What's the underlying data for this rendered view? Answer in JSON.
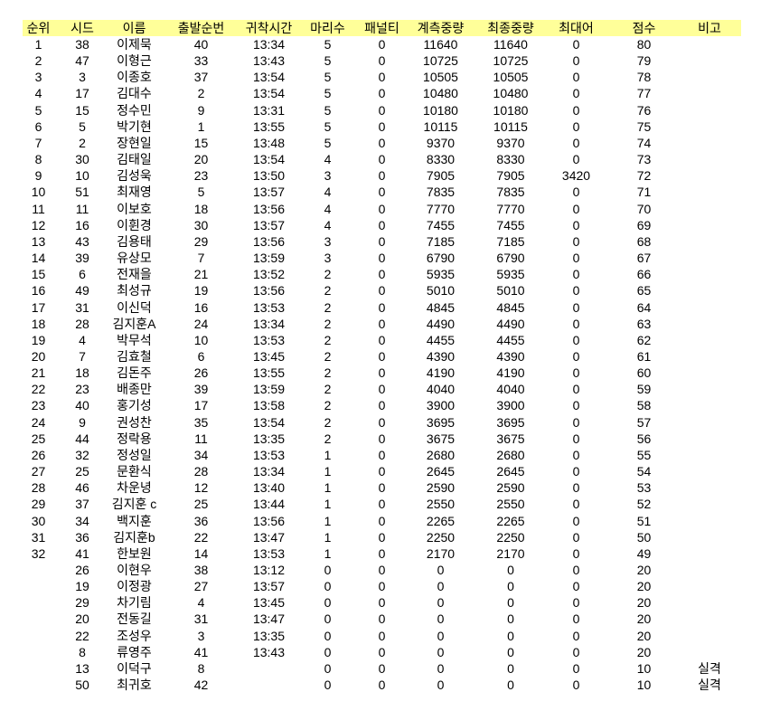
{
  "headers": [
    "순위",
    "시드",
    "이름",
    "출발순번",
    "귀착시간",
    "마리수",
    "패널티",
    "계측중량",
    "최종중량",
    "최대어",
    "점수",
    "비고"
  ],
  "header_bg": "#ffff99",
  "rows": [
    [
      "1",
      "38",
      "이제묵",
      "40",
      "13:34",
      "5",
      "0",
      "11640",
      "11640",
      "0",
      "80",
      ""
    ],
    [
      "2",
      "47",
      "이형근",
      "33",
      "13:43",
      "5",
      "0",
      "10725",
      "10725",
      "0",
      "79",
      ""
    ],
    [
      "3",
      "3",
      "이종호",
      "37",
      "13:54",
      "5",
      "0",
      "10505",
      "10505",
      "0",
      "78",
      ""
    ],
    [
      "4",
      "17",
      "김대수",
      "2",
      "13:54",
      "5",
      "0",
      "10480",
      "10480",
      "0",
      "77",
      ""
    ],
    [
      "5",
      "15",
      "정수민",
      "9",
      "13:31",
      "5",
      "0",
      "10180",
      "10180",
      "0",
      "76",
      ""
    ],
    [
      "6",
      "5",
      "박기현",
      "1",
      "13:55",
      "5",
      "0",
      "10115",
      "10115",
      "0",
      "75",
      ""
    ],
    [
      "7",
      "2",
      "장현일",
      "15",
      "13:48",
      "5",
      "0",
      "9370",
      "9370",
      "0",
      "74",
      ""
    ],
    [
      "8",
      "30",
      "김태일",
      "20",
      "13:54",
      "4",
      "0",
      "8330",
      "8330",
      "0",
      "73",
      ""
    ],
    [
      "9",
      "10",
      "김성욱",
      "23",
      "13:50",
      "3",
      "0",
      "7905",
      "7905",
      "3420",
      "72",
      ""
    ],
    [
      "10",
      "51",
      "최재영",
      "5",
      "13:57",
      "4",
      "0",
      "7835",
      "7835",
      "0",
      "71",
      ""
    ],
    [
      "11",
      "11",
      "이보호",
      "18",
      "13:56",
      "4",
      "0",
      "7770",
      "7770",
      "0",
      "70",
      ""
    ],
    [
      "12",
      "16",
      "이휜경",
      "30",
      "13:57",
      "4",
      "0",
      "7455",
      "7455",
      "0",
      "69",
      ""
    ],
    [
      "13",
      "43",
      "김용태",
      "29",
      "13:56",
      "3",
      "0",
      "7185",
      "7185",
      "0",
      "68",
      ""
    ],
    [
      "14",
      "39",
      "유상모",
      "7",
      "13:59",
      "3",
      "0",
      "6790",
      "6790",
      "0",
      "67",
      ""
    ],
    [
      "15",
      "6",
      "전재을",
      "21",
      "13:52",
      "2",
      "0",
      "5935",
      "5935",
      "0",
      "66",
      ""
    ],
    [
      "16",
      "49",
      "최성규",
      "19",
      "13:56",
      "2",
      "0",
      "5010",
      "5010",
      "0",
      "65",
      ""
    ],
    [
      "17",
      "31",
      "이신덕",
      "16",
      "13:53",
      "2",
      "0",
      "4845",
      "4845",
      "0",
      "64",
      ""
    ],
    [
      "18",
      "28",
      "김지훈A",
      "24",
      "13:34",
      "2",
      "0",
      "4490",
      "4490",
      "0",
      "63",
      ""
    ],
    [
      "19",
      "4",
      "박무석",
      "10",
      "13:53",
      "2",
      "0",
      "4455",
      "4455",
      "0",
      "62",
      ""
    ],
    [
      "20",
      "7",
      "김효철",
      "6",
      "13:45",
      "2",
      "0",
      "4390",
      "4390",
      "0",
      "61",
      ""
    ],
    [
      "21",
      "18",
      "김돈주",
      "26",
      "13:55",
      "2",
      "0",
      "4190",
      "4190",
      "0",
      "60",
      ""
    ],
    [
      "22",
      "23",
      "배종만",
      "39",
      "13:59",
      "2",
      "0",
      "4040",
      "4040",
      "0",
      "59",
      ""
    ],
    [
      "23",
      "40",
      "홍기성",
      "17",
      "13:58",
      "2",
      "0",
      "3900",
      "3900",
      "0",
      "58",
      ""
    ],
    [
      "24",
      "9",
      "권성찬",
      "35",
      "13:54",
      "2",
      "0",
      "3695",
      "3695",
      "0",
      "57",
      ""
    ],
    [
      "25",
      "44",
      "정락용",
      "11",
      "13:35",
      "2",
      "0",
      "3675",
      "3675",
      "0",
      "56",
      ""
    ],
    [
      "26",
      "32",
      "정성일",
      "34",
      "13:53",
      "1",
      "0",
      "2680",
      "2680",
      "0",
      "55",
      ""
    ],
    [
      "27",
      "25",
      "문환식",
      "28",
      "13:34",
      "1",
      "0",
      "2645",
      "2645",
      "0",
      "54",
      ""
    ],
    [
      "28",
      "46",
      "차운녕",
      "12",
      "13:40",
      "1",
      "0",
      "2590",
      "2590",
      "0",
      "53",
      ""
    ],
    [
      "29",
      "37",
      "김지훈 c",
      "25",
      "13:44",
      "1",
      "0",
      "2550",
      "2550",
      "0",
      "52",
      ""
    ],
    [
      "30",
      "34",
      "백지훈",
      "36",
      "13:56",
      "1",
      "0",
      "2265",
      "2265",
      "0",
      "51",
      ""
    ],
    [
      "31",
      "36",
      "김지훈b",
      "22",
      "13:47",
      "1",
      "0",
      "2250",
      "2250",
      "0",
      "50",
      ""
    ],
    [
      "32",
      "41",
      "한보원",
      "14",
      "13:53",
      "1",
      "0",
      "2170",
      "2170",
      "0",
      "49",
      ""
    ],
    [
      "",
      "26",
      "이현우",
      "38",
      "13:12",
      "0",
      "0",
      "0",
      "0",
      "0",
      "20",
      ""
    ],
    [
      "",
      "19",
      "이정광",
      "27",
      "13:57",
      "0",
      "0",
      "0",
      "0",
      "0",
      "20",
      ""
    ],
    [
      "",
      "29",
      "차기림",
      "4",
      "13:45",
      "0",
      "0",
      "0",
      "0",
      "0",
      "20",
      ""
    ],
    [
      "",
      "20",
      "전동길",
      "31",
      "13:47",
      "0",
      "0",
      "0",
      "0",
      "0",
      "20",
      ""
    ],
    [
      "",
      "22",
      "조성우",
      "3",
      "13:35",
      "0",
      "0",
      "0",
      "0",
      "0",
      "20",
      ""
    ],
    [
      "",
      "8",
      "류영주",
      "41",
      "13:43",
      "0",
      "0",
      "0",
      "0",
      "0",
      "20",
      ""
    ],
    [
      "",
      "13",
      "이덕구",
      "8",
      "",
      "0",
      "0",
      "0",
      "0",
      "0",
      "10",
      "실격"
    ],
    [
      "",
      "50",
      "최귀호",
      "42",
      "",
      "0",
      "0",
      "0",
      "0",
      "0",
      "10",
      "실격"
    ]
  ]
}
